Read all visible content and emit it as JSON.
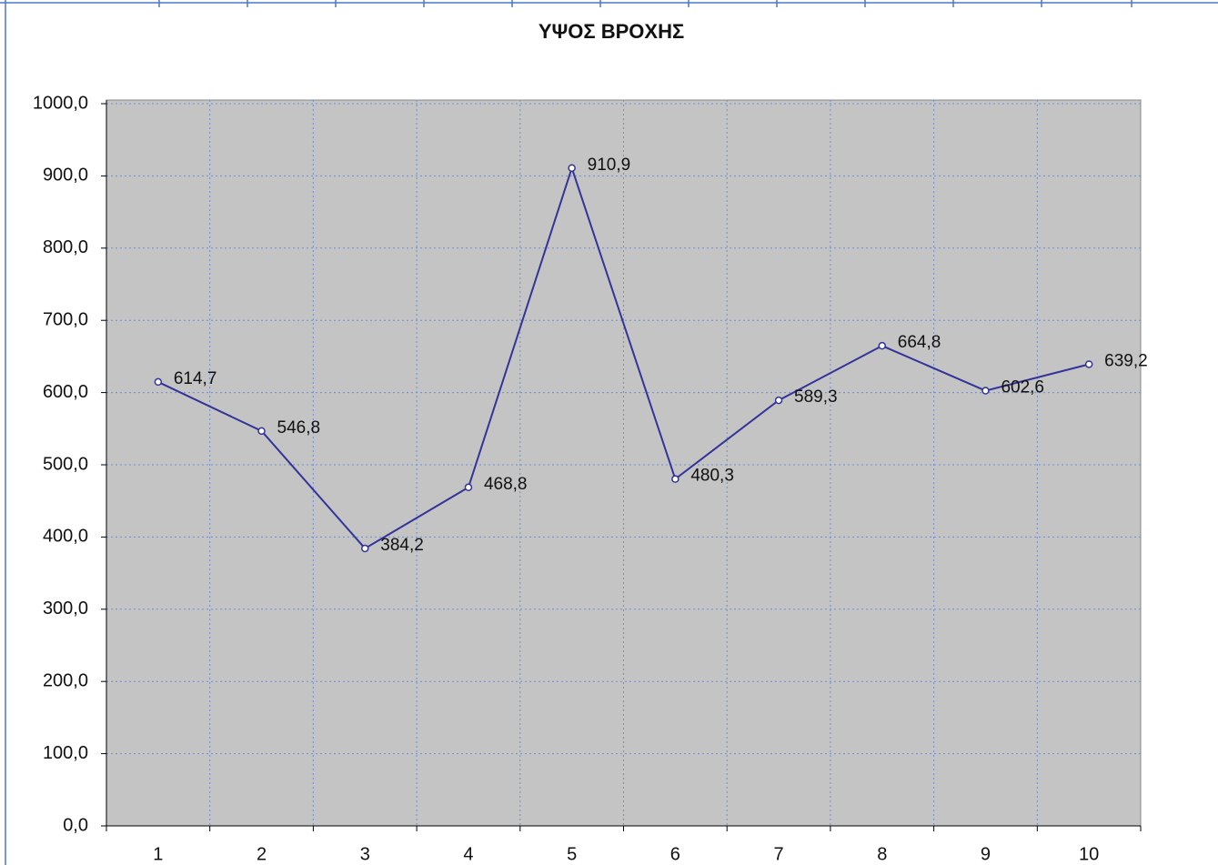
{
  "chart_data": {
    "type": "line",
    "title": "ΥΨΟΣ ΒΡΟΧΗΣ",
    "categories": [
      "1",
      "2",
      "3",
      "4",
      "5",
      "6",
      "7",
      "8",
      "9",
      "10"
    ],
    "values": [
      614.7,
      546.8,
      384.2,
      468.8,
      910.9,
      480.3,
      589.3,
      664.8,
      602.6,
      639.2
    ],
    "value_labels": [
      "614,7",
      "546,8",
      "384,2",
      "468,8",
      "910,9",
      "480,3",
      "589,3",
      "664,8",
      "602,6",
      "639,2"
    ],
    "color": "#333399",
    "ylim": [
      0,
      1000
    ],
    "yticks": [
      {
        "value": 0,
        "label": "0,0"
      },
      {
        "value": 100,
        "label": "100,0"
      },
      {
        "value": 200,
        "label": "200,0"
      },
      {
        "value": 300,
        "label": "300,0"
      },
      {
        "value": 400,
        "label": "400,0"
      },
      {
        "value": 500,
        "label": "500,0"
      },
      {
        "value": 600,
        "label": "600,0"
      },
      {
        "value": 700,
        "label": "700,0"
      },
      {
        "value": 800,
        "label": "800,0"
      },
      {
        "value": 900,
        "label": "900,0"
      },
      {
        "value": 1000,
        "label": "1000,0"
      }
    ],
    "grid": true
  }
}
